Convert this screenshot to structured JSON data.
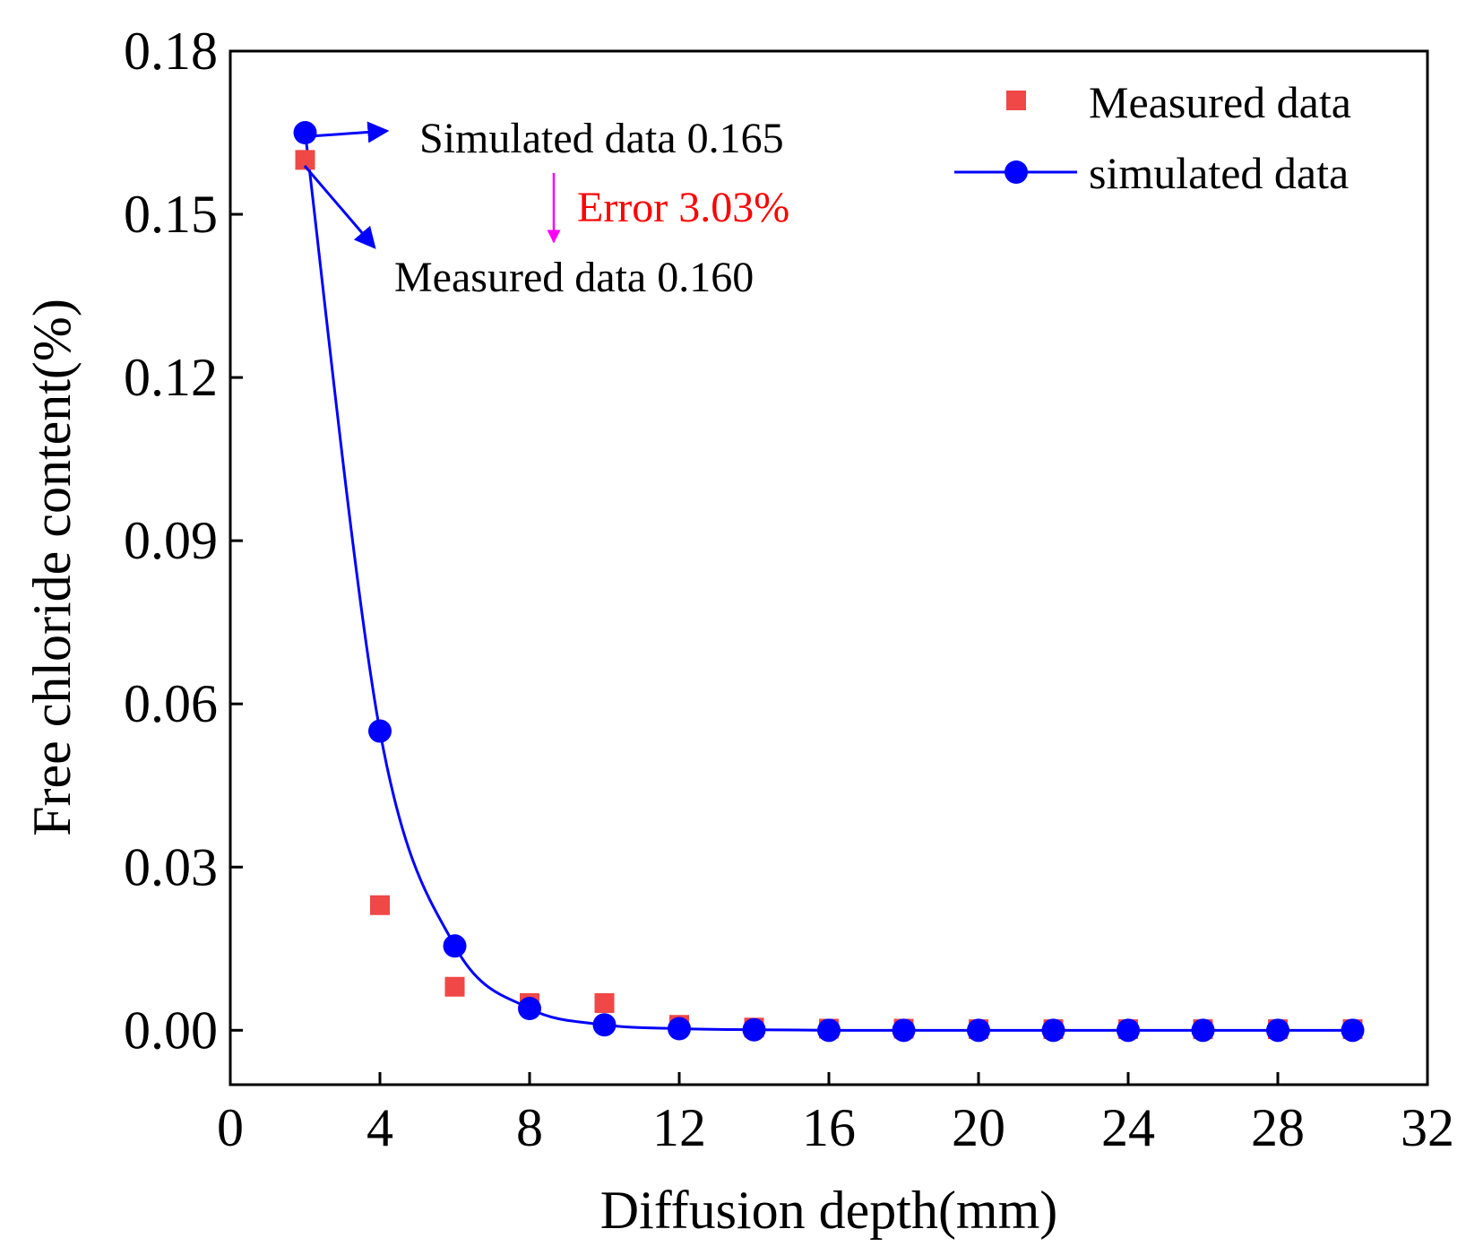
{
  "chart_data": {
    "type": "scatter",
    "xlabel": "Diffusion depth(mm)",
    "ylabel": "Free chloride content(%)",
    "xlim": [
      0,
      32
    ],
    "ylim": [
      -0.01,
      0.18
    ],
    "xticks": [
      0,
      4,
      8,
      12,
      16,
      20,
      24,
      28,
      32
    ],
    "yticks": [
      0.0,
      0.03,
      0.06,
      0.09,
      0.12,
      0.15,
      0.18
    ],
    "xtick_labels": [
      "0",
      "4",
      "8",
      "12",
      "16",
      "20",
      "24",
      "28",
      "32"
    ],
    "ytick_labels": [
      "0.00",
      "0.03",
      "0.06",
      "0.09",
      "0.12",
      "0.15",
      "0.18"
    ],
    "grid": false,
    "legend_position": "top-right",
    "series": [
      {
        "name": "Measured data",
        "marker": "square",
        "line": false,
        "color": "#f04747",
        "x": [
          2,
          4,
          6,
          8,
          10,
          12,
          14,
          16,
          18,
          20,
          22,
          24,
          26,
          28,
          30
        ],
        "values": [
          0.16,
          0.023,
          0.008,
          0.005,
          0.005,
          0.001,
          0.0005,
          0.0003,
          0.0003,
          0.0002,
          0.0002,
          0.0002,
          0.0002,
          0.0002,
          0.0002
        ]
      },
      {
        "name": "simulated data",
        "marker": "circle",
        "line": true,
        "color": "#0000ff",
        "x": [
          2,
          4,
          6,
          8,
          10,
          12,
          14,
          16,
          18,
          20,
          22,
          24,
          26,
          28,
          30
        ],
        "values": [
          0.165,
          0.055,
          0.0155,
          0.004,
          0.001,
          0.0003,
          0.0001,
          0.0,
          0.0,
          0.0,
          0.0,
          0.0,
          0.0,
          0.0,
          0.0
        ]
      }
    ],
    "annotations": {
      "simulated": "Simulated data 0.165",
      "error": "Error 3.03%",
      "measured": "Measured data  0.160"
    },
    "colors": {
      "axis": "#000000",
      "error_text": "#ff0000",
      "error_arrow": "#ff00ff",
      "annotation_arrow": "#0000ff"
    }
  }
}
